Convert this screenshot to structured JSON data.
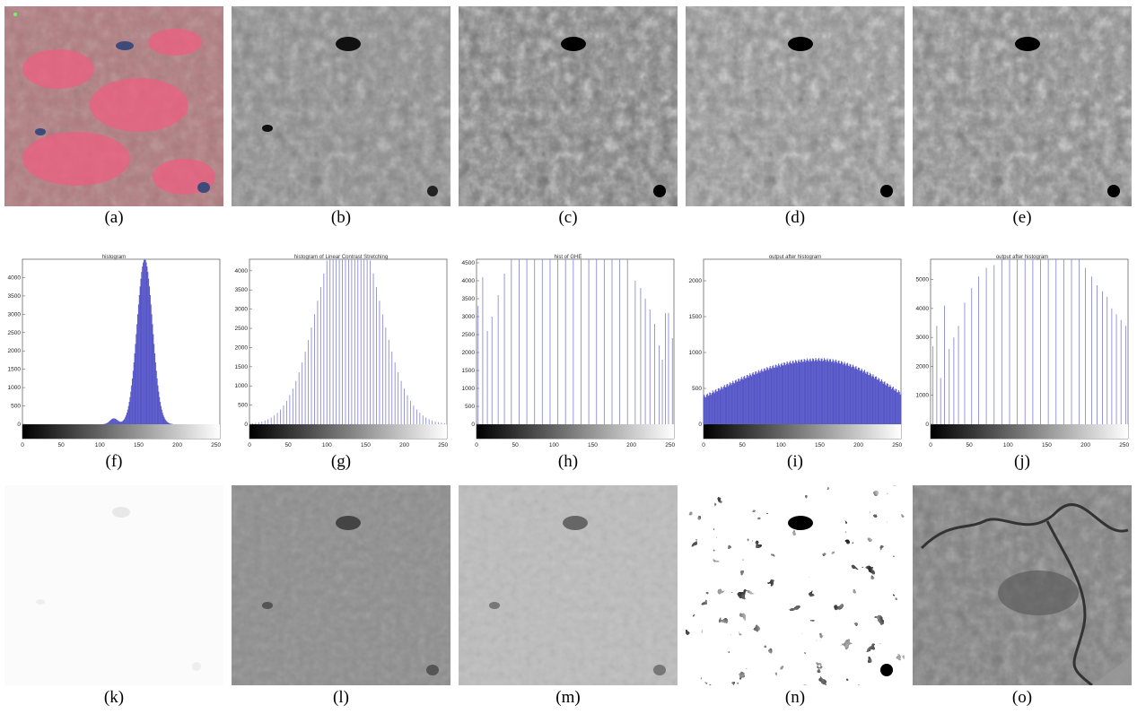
{
  "figure": {
    "captions": [
      "(a)",
      "(b)",
      "(c)",
      "(d)",
      "(e)",
      "(f)",
      "(g)",
      "(h)",
      "(i)",
      "(j)",
      "(k)",
      "(l)",
      "(m)",
      "(n)",
      "(o)"
    ]
  },
  "chart_data": [
    {
      "type": "bar",
      "panel": "f",
      "title": "histogram",
      "xlabel": "",
      "ylabel": "",
      "xlim": [
        0,
        255
      ],
      "ylim": [
        0,
        4500
      ],
      "xticks": [
        "0",
        "50",
        "100",
        "150",
        "200",
        "250"
      ],
      "yticks": [
        "0",
        "500",
        "1000",
        "1500",
        "2000",
        "2500",
        "3000",
        "3500",
        "4000"
      ],
      "bar_color": "#5656c8",
      "filled": true,
      "values": {
        "shape": "peak",
        "center": 158,
        "width": 10,
        "max": 4500,
        "secondary": {
          "center": 118,
          "width": 5,
          "max": 160
        }
      }
    },
    {
      "type": "bar",
      "panel": "g",
      "title": "histogram of Linear Contrast Stretching",
      "xlabel": "",
      "ylabel": "",
      "xlim": [
        0,
        255
      ],
      "ylim": [
        0,
        4300
      ],
      "xticks": [
        "0",
        "50",
        "100",
        "150",
        "200",
        "250"
      ],
      "yticks": [
        "0",
        "500",
        "1000",
        "1500",
        "2000",
        "2500",
        "3000",
        "3500",
        "4000"
      ],
      "bar_color": "#8c8cd8",
      "filled": false,
      "values": {
        "shape": "bell",
        "center": 128,
        "width": 38,
        "max": 5600,
        "step": 4
      }
    },
    {
      "type": "bar",
      "panel": "h",
      "title": "hist of GHE",
      "xlabel": "",
      "ylabel": "",
      "xlim": [
        0,
        255
      ],
      "ylim": [
        0,
        4600
      ],
      "xticks": [
        "0",
        "50",
        "100",
        "150",
        "200",
        "250"
      ],
      "yticks": [
        "0",
        "500",
        "1000",
        "1500",
        "2000",
        "2500",
        "3000",
        "3500",
        "4000",
        "4500"
      ],
      "bar_color": "#8c8cd8",
      "filled": false,
      "values": {
        "bars": [
          [
            2,
            3300
          ],
          [
            8,
            4100
          ],
          [
            14,
            2600
          ],
          [
            20,
            3000
          ],
          [
            28,
            3600
          ],
          [
            36,
            4200
          ],
          [
            45,
            4600
          ],
          [
            55,
            4600
          ],
          [
            65,
            4600
          ],
          [
            75,
            4600
          ],
          [
            85,
            4600
          ],
          [
            95,
            4600
          ],
          [
            105,
            4600
          ],
          [
            115,
            4600
          ],
          [
            125,
            4600
          ],
          [
            135,
            4600
          ],
          [
            145,
            4600
          ],
          [
            155,
            4600
          ],
          [
            165,
            4600
          ],
          [
            175,
            4600
          ],
          [
            185,
            4600
          ],
          [
            195,
            4600
          ],
          [
            205,
            4000
          ],
          [
            212,
            3800
          ],
          [
            218,
            3500
          ],
          [
            224,
            3200
          ],
          [
            230,
            2800
          ],
          [
            236,
            2200
          ],
          [
            240,
            1800
          ],
          [
            244,
            3100
          ],
          [
            248,
            3100
          ],
          [
            253,
            2400
          ]
        ]
      }
    },
    {
      "type": "bar",
      "panel": "i",
      "title": "output after histogram",
      "xlabel": "",
      "ylabel": "",
      "xlim": [
        0,
        255
      ],
      "ylim": [
        0,
        2300
      ],
      "xticks": [
        "0",
        "50",
        "100",
        "150",
        "200",
        "250"
      ],
      "yticks": [
        "0",
        "500",
        "1000",
        "1500",
        "2000"
      ],
      "bar_color": "#5656c8",
      "filled": true,
      "values": {
        "shape": "dome",
        "start": 380,
        "peak": 900,
        "peak_at": 150,
        "end": 430
      }
    },
    {
      "type": "bar",
      "panel": "j",
      "title": "output after histogram",
      "xlabel": "",
      "ylabel": "",
      "xlim": [
        0,
        255
      ],
      "ylim": [
        0,
        5700
      ],
      "xticks": [
        "0",
        "50",
        "100",
        "150",
        "200",
        "250"
      ],
      "yticks": [
        "0",
        "1000",
        "2000",
        "3000",
        "4000",
        "5000"
      ],
      "bar_color": "#8c8cd8",
      "filled": false,
      "values": {
        "bars": [
          [
            3,
            2700
          ],
          [
            8,
            3400
          ],
          [
            13,
            1600
          ],
          [
            18,
            4100
          ],
          [
            24,
            2600
          ],
          [
            30,
            3000
          ],
          [
            36,
            3400
          ],
          [
            44,
            4200
          ],
          [
            53,
            4700
          ],
          [
            62,
            5100
          ],
          [
            72,
            5400
          ],
          [
            82,
            5500
          ],
          [
            92,
            5700
          ],
          [
            102,
            5700
          ],
          [
            112,
            5700
          ],
          [
            122,
            5700
          ],
          [
            132,
            5700
          ],
          [
            142,
            5700
          ],
          [
            152,
            5700
          ],
          [
            162,
            5700
          ],
          [
            172,
            5700
          ],
          [
            182,
            5700
          ],
          [
            192,
            5700
          ],
          [
            200,
            5400
          ],
          [
            208,
            5100
          ],
          [
            215,
            4800
          ],
          [
            222,
            4600
          ],
          [
            228,
            4400
          ],
          [
            234,
            4000
          ],
          [
            240,
            3800
          ],
          [
            246,
            3600
          ],
          [
            252,
            3400
          ]
        ]
      }
    }
  ]
}
